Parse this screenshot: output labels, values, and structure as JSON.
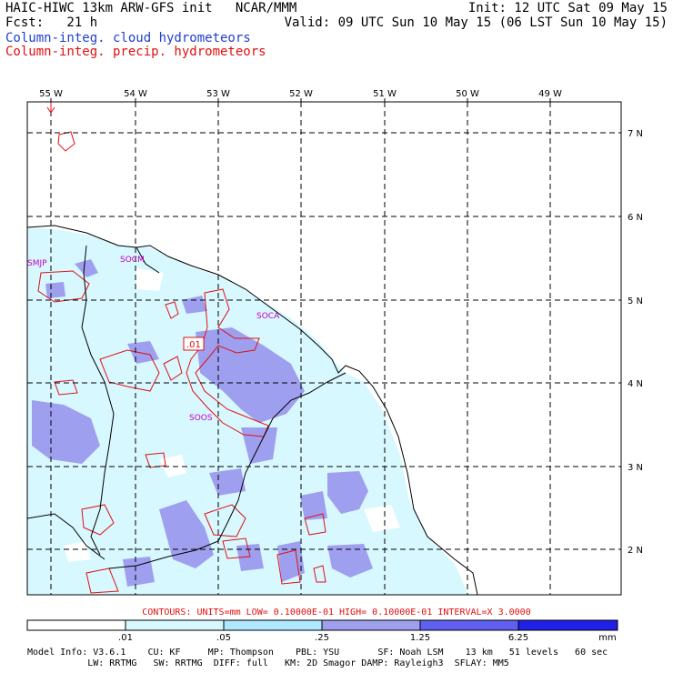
{
  "header": {
    "model_line": "HAIC-HIWC 13km ARW-GFS init   NCAR/MMM",
    "init": "Init: 12 UTC Sat 09 May 15",
    "fcst": "Fcst:   21 h",
    "valid": "Valid: 09 UTC Sun 10 May 15 (06 LST Sun 10 May 15)",
    "field1": "Column-integ. cloud hydrometeors",
    "field2": "Column-integ. precip. hydrometeors"
  },
  "map": {
    "lon_labels": [
      "55 W",
      "54 W",
      "53 W",
      "52 W",
      "51 W",
      "50 W",
      "49 W"
    ],
    "lat_labels": [
      "7 N",
      "6 N",
      "5 N",
      "4 N",
      "3 N",
      "2 N"
    ],
    "stations": [
      "SMJP",
      "SOCM",
      "SOCA",
      "SOOS"
    ],
    "contour_label": ".01",
    "colors": {
      "coast": "#000000",
      "precip_contour": "#e01010",
      "station": "#c000c0",
      "cloud_1": "#d8f8ff",
      "cloud_2": "#9f9ff0"
    }
  },
  "contours_line": "CONTOURS:  UNITS=mm  LOW= 0.10000E-01  HIGH= 0.10000E-01  INTERVAL=X  3.0000",
  "colorbar": {
    "ticks": [
      ".01",
      ".05",
      ".25",
      "1.25",
      "6.25"
    ],
    "unit": "mm",
    "colors": [
      "#ffffff",
      "#d8f8ff",
      "#b0e8ff",
      "#9f9ff0",
      "#6060f0",
      "#2020e8"
    ]
  },
  "footer": {
    "line1": "Model Info: V3.6.1    CU: KF     MP: Thompson    PBL: YSU       SF: Noah LSM    13 km   51 levels   60 sec",
    "line2": "           LW: RRTMG   SW: RRTMG  DIFF: full   KM: 2D Smagor DAMP: Rayleigh3  SFLAY: MM5"
  }
}
